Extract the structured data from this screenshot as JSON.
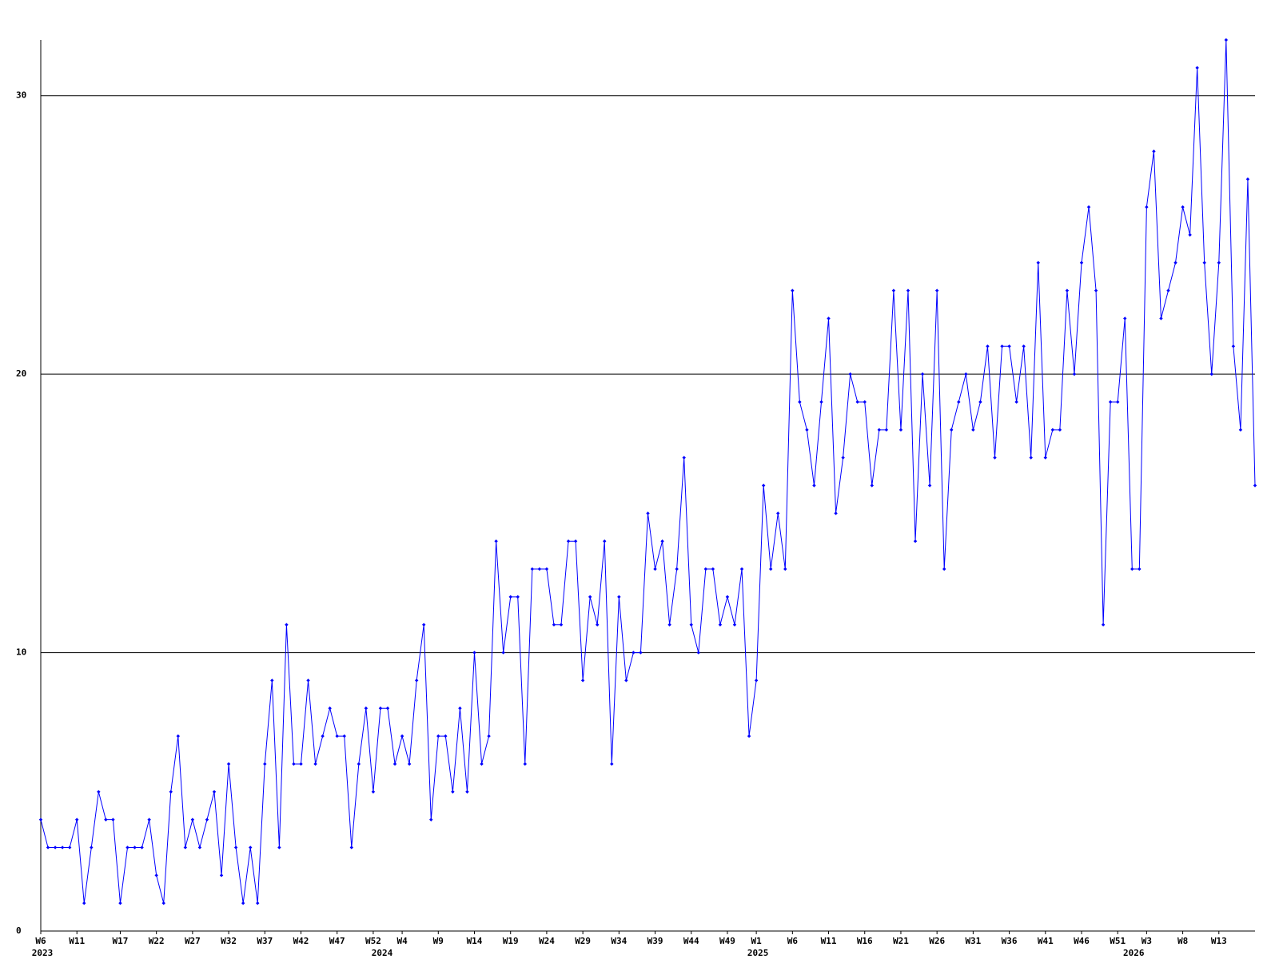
{
  "chart_data": {
    "type": "line",
    "categories": [
      "W6",
      null,
      null,
      null,
      null,
      "W11",
      null,
      null,
      null,
      null,
      null,
      "W17",
      null,
      null,
      null,
      null,
      "W22",
      null,
      null,
      null,
      null,
      "W27",
      null,
      null,
      null,
      null,
      "W32",
      null,
      null,
      null,
      null,
      "W37",
      null,
      null,
      null,
      null,
      "W42",
      null,
      null,
      null,
      null,
      "W47",
      null,
      null,
      null,
      null,
      "W52",
      null,
      null,
      null,
      "W4",
      null,
      null,
      null,
      null,
      "W9",
      null,
      null,
      null,
      null,
      "W14",
      null,
      null,
      null,
      null,
      "W19",
      null,
      null,
      null,
      null,
      "W24",
      null,
      null,
      null,
      null,
      "W29",
      null,
      null,
      null,
      null,
      "W34",
      null,
      null,
      null,
      null,
      "W39",
      null,
      null,
      null,
      null,
      "W44",
      null,
      null,
      null,
      null,
      "W49",
      null,
      null,
      null,
      "W1",
      null,
      null,
      null,
      null,
      "W6",
      null,
      null,
      null,
      null,
      "W11",
      null,
      null,
      null,
      null,
      "W16",
      null,
      null,
      null,
      null,
      "W21",
      null,
      null,
      null,
      null,
      "W26",
      null,
      null,
      null,
      null,
      "W31",
      null,
      null,
      null,
      null,
      "W36",
      null,
      null,
      null,
      null,
      "W41",
      null,
      null,
      null,
      null,
      "W46",
      null,
      null,
      null,
      null,
      "W51",
      null,
      null,
      null,
      "W3",
      null,
      null,
      null,
      null,
      "W8",
      null,
      null,
      null,
      null,
      "W13",
      null,
      null,
      null,
      null,
      null
    ],
    "year_labels": [
      "2023",
      null,
      null,
      null,
      null,
      null,
      null,
      null,
      null,
      null,
      null,
      null,
      null,
      null,
      null,
      null,
      null,
      null,
      null,
      null,
      null,
      null,
      null,
      null,
      null,
      null,
      null,
      null,
      null,
      null,
      null,
      null,
      null,
      null,
      null,
      null,
      null,
      null,
      null,
      null,
      null,
      null,
      null,
      null,
      null,
      null,
      null,
      "2024",
      null,
      null,
      null,
      null,
      null,
      null,
      null,
      null,
      null,
      null,
      null,
      null,
      null,
      null,
      null,
      null,
      null,
      null,
      null,
      null,
      null,
      null,
      null,
      null,
      null,
      null,
      null,
      null,
      null,
      null,
      null,
      null,
      null,
      null,
      null,
      null,
      null,
      null,
      null,
      null,
      null,
      null,
      null,
      null,
      null,
      null,
      null,
      null,
      null,
      null,
      null,
      "2025",
      null,
      null,
      null,
      null,
      null,
      null,
      null,
      null,
      null,
      null,
      null,
      null,
      null,
      null,
      null,
      null,
      null,
      null,
      null,
      null,
      null,
      null,
      null,
      null,
      null,
      null,
      null,
      null,
      null,
      null,
      null,
      null,
      null,
      null,
      null,
      null,
      null,
      null,
      null,
      null,
      null,
      null,
      null,
      null,
      null,
      null,
      null,
      null,
      null,
      null,
      null,
      "2026",
      null,
      null,
      null,
      null,
      null,
      null,
      null,
      null,
      null,
      null,
      null,
      null,
      null,
      null,
      null,
      null,
      null
    ],
    "values": [
      4,
      3,
      3,
      3,
      3,
      4,
      1,
      3,
      5,
      4,
      4,
      1,
      3,
      3,
      3,
      4,
      2,
      1,
      5,
      7,
      3,
      4,
      3,
      4,
      5,
      2,
      6,
      3,
      1,
      3,
      1,
      6,
      9,
      3,
      11,
      6,
      6,
      9,
      6,
      7,
      8,
      7,
      7,
      3,
      6,
      8,
      5,
      8,
      8,
      6,
      7,
      6,
      9,
      11,
      4,
      7,
      7,
      5,
      8,
      5,
      10,
      6,
      7,
      14,
      10,
      12,
      12,
      6,
      13,
      13,
      13,
      11,
      11,
      14,
      14,
      9,
      12,
      11,
      14,
      6,
      12,
      9,
      10,
      10,
      15,
      13,
      14,
      11,
      13,
      17,
      11,
      10,
      13,
      13,
      11,
      12,
      11,
      13,
      7,
      9,
      16,
      13,
      15,
      13,
      23,
      19,
      18,
      16,
      19,
      22,
      15,
      17,
      20,
      19,
      19,
      16,
      18,
      18,
      23,
      18,
      23,
      14,
      20,
      16,
      23,
      13,
      18,
      19,
      20,
      18,
      19,
      21,
      17,
      21,
      21,
      19,
      21,
      17,
      24,
      17,
      18,
      18,
      23,
      20,
      24,
      26,
      23,
      11,
      19,
      19,
      22,
      13,
      13,
      26,
      28,
      22,
      23,
      24,
      26,
      25,
      31,
      24,
      20,
      24,
      32,
      21,
      18,
      27,
      16
    ],
    "color": "#0000ff",
    "ylim": [
      0,
      32
    ],
    "yticks": [
      0,
      10,
      20,
      30
    ],
    "grid": true
  }
}
